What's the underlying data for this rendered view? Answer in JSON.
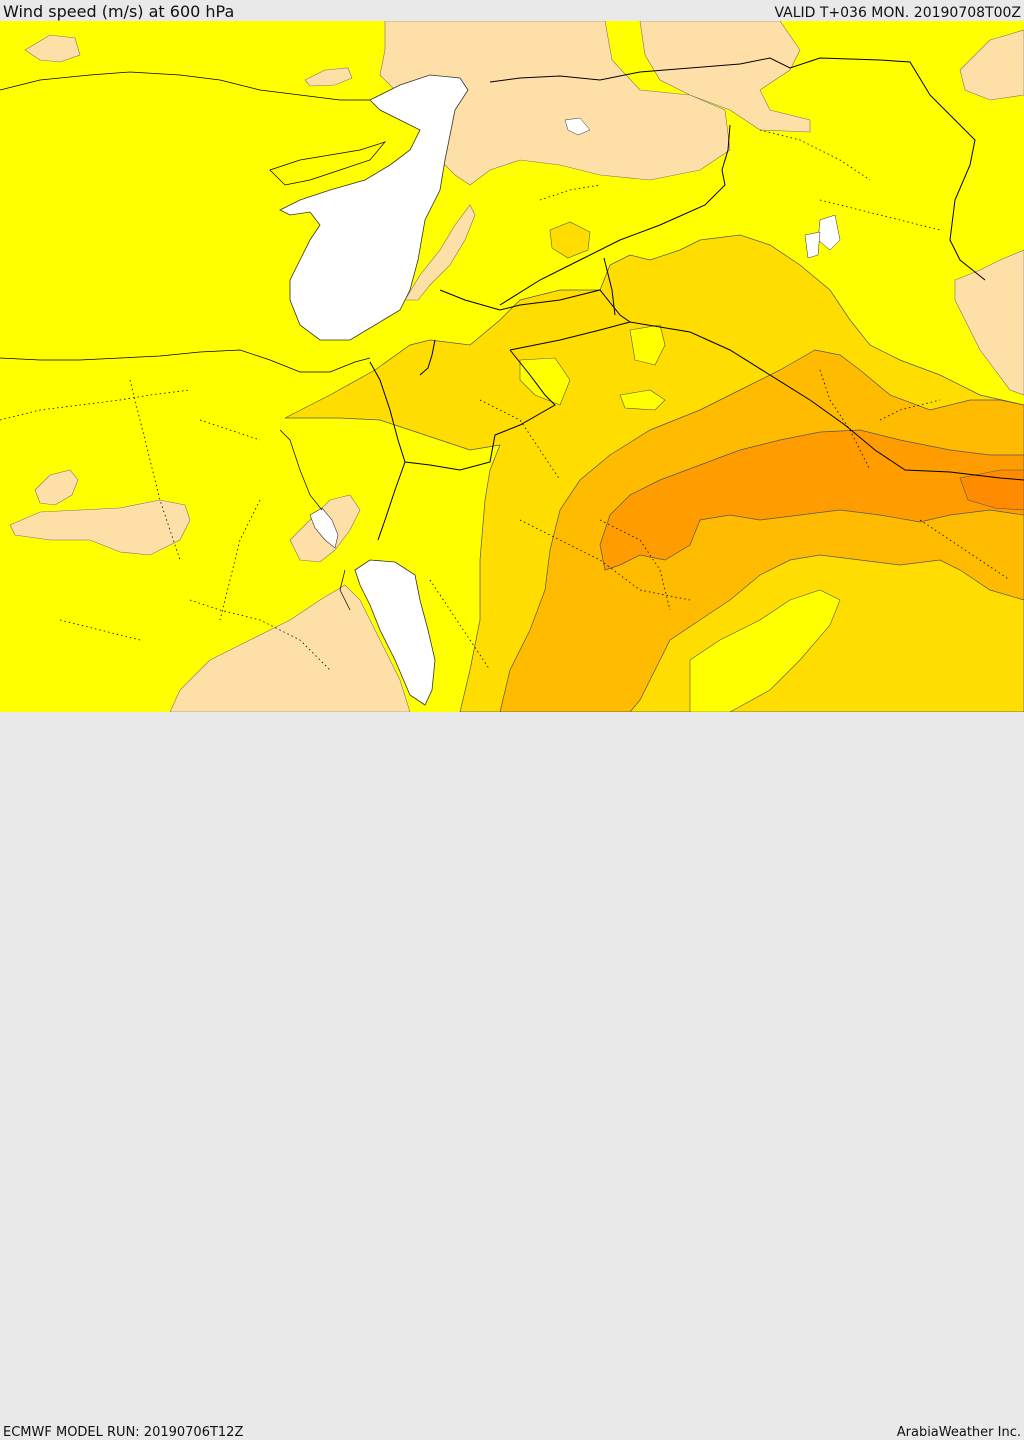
{
  "header": {
    "title": "Wind speed (m/s) at 600 hPa",
    "valid": "VALID T+036 MON. 20190708T00Z"
  },
  "footer": {
    "model_run": "ECMWF MODEL RUN: 20190706T12Z",
    "credit": "ArabiaWeather Inc."
  },
  "map": {
    "colors": {
      "water": "#ffffff",
      "calm": "#ffdfa8",
      "light": "#ffff00",
      "moderate": "#ffdd00",
      "fresh": "#ffbb00",
      "strong": "#ff9d00",
      "stronger": "#ff8c00",
      "contour": "#555555",
      "border": "#000000"
    }
  }
}
